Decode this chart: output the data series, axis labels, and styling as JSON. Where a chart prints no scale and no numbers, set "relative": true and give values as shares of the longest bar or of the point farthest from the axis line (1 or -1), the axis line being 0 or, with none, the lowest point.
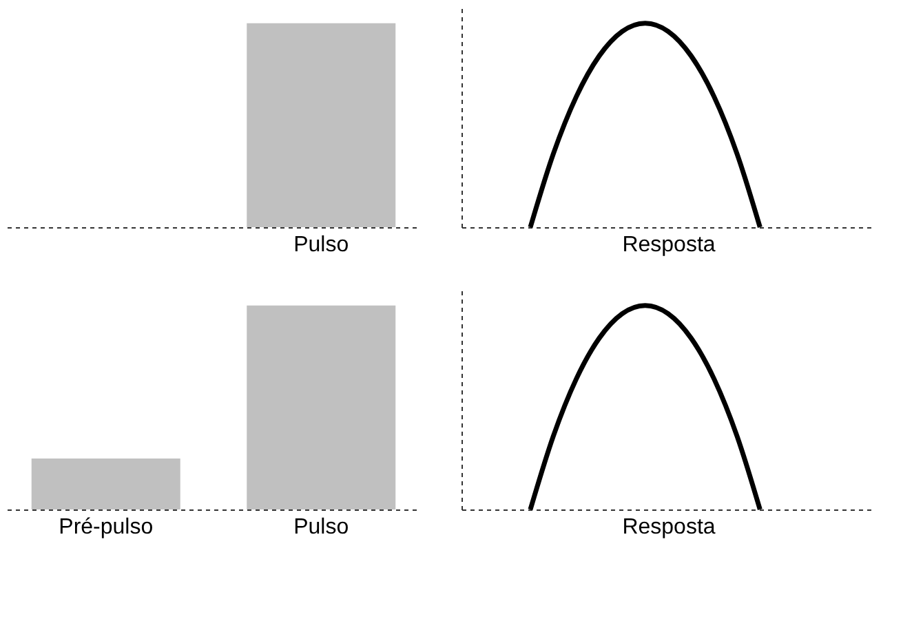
{
  "chart_data": [
    {
      "type": "bar",
      "categories": [
        null,
        "Pulso"
      ],
      "values": [
        null,
        1
      ],
      "color": "#c0c0c0",
      "relative": true,
      "tick_labels": "x"
    },
    {
      "type": "line",
      "categories": [
        null,
        null,
        null,
        null,
        null,
        null,
        null,
        null,
        null,
        null,
        null,
        null,
        null,
        null,
        null,
        null,
        null,
        null,
        null
      ],
      "values": [
        null,
        null,
        null,
        0,
        0.36,
        0.64,
        0.84,
        0.96,
        1,
        0.96,
        0.84,
        0.64,
        0.36,
        0,
        null,
        null,
        null,
        null,
        null
      ],
      "color": "#000000",
      "xlabel": "Resposta",
      "relative": true,
      "tick_labels": false
    },
    {
      "type": "bar",
      "categories": [
        "Pré-pulso",
        "Pulso"
      ],
      "values": [
        0.25,
        1
      ],
      "color": "#c0c0c0",
      "relative": true,
      "tick_labels": "x"
    },
    {
      "type": "line",
      "categories": [
        null,
        null,
        null,
        null,
        null,
        null,
        null,
        null,
        null,
        null,
        null,
        null,
        null,
        null,
        null,
        null,
        null,
        null,
        null
      ],
      "values": [
        null,
        null,
        null,
        0,
        0.36,
        0.64,
        0.84,
        0.96,
        1,
        0.96,
        0.84,
        0.64,
        0.36,
        0,
        null,
        null,
        null,
        null,
        null
      ],
      "color": "#000000",
      "xlabel": "Resposta",
      "relative": true,
      "tick_labels": false
    }
  ]
}
